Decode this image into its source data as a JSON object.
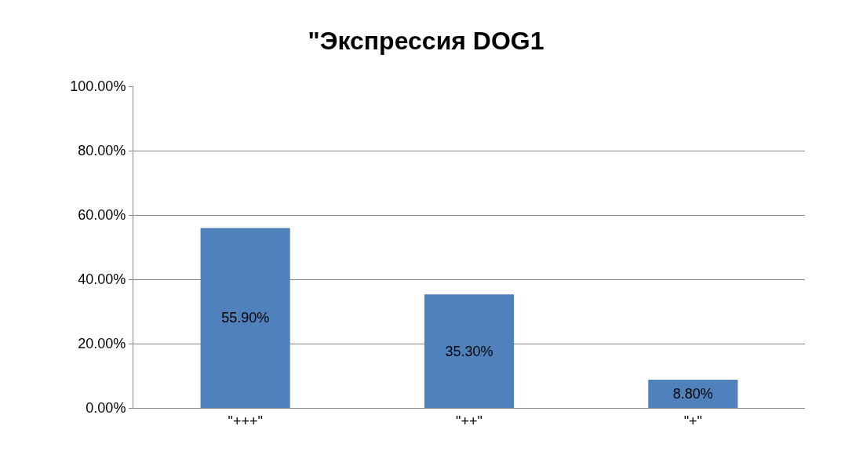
{
  "chart_data": {
    "type": "bar",
    "title": "\"Экспрессия DOG1",
    "categories": [
      "\"+++\"",
      "\"++\"",
      "\"+\""
    ],
    "values": [
      55.9,
      35.3,
      8.8
    ],
    "value_labels": [
      "55.90%",
      "35.30%",
      "8.80%"
    ],
    "color": "#4f81bd",
    "ylim": [
      0,
      100
    ],
    "yticks": [
      {
        "value": 0,
        "label": "0.00%"
      },
      {
        "value": 20,
        "label": "20.00%"
      },
      {
        "value": 40,
        "label": "40.00%"
      },
      {
        "value": 60,
        "label": "60.00%"
      },
      {
        "value": 80,
        "label": "80.00%"
      },
      {
        "value": 100,
        "label": "100.00%"
      }
    ],
    "grid": "y"
  }
}
